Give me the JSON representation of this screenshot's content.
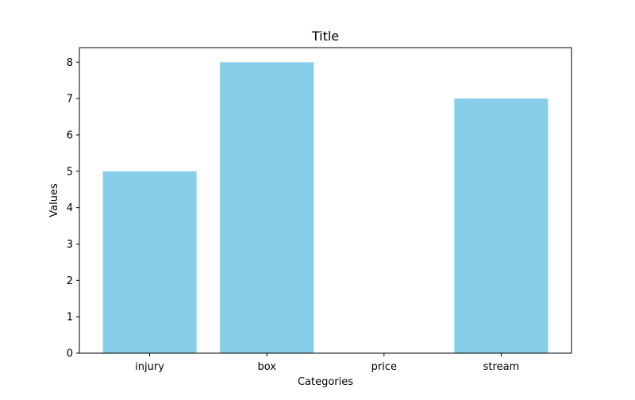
{
  "chart_data": {
    "type": "bar",
    "title": "Title",
    "xlabel": "Categories",
    "ylabel": "Values",
    "categories": [
      "injury",
      "box",
      "price",
      "stream"
    ],
    "values": [
      5,
      8,
      0,
      7
    ],
    "ylim": [
      0,
      8.4
    ],
    "yticks": [
      0,
      1,
      2,
      3,
      4,
      5,
      6,
      7,
      8
    ],
    "grid": false,
    "legend": "none",
    "bar_color": "#87CEEB"
  }
}
